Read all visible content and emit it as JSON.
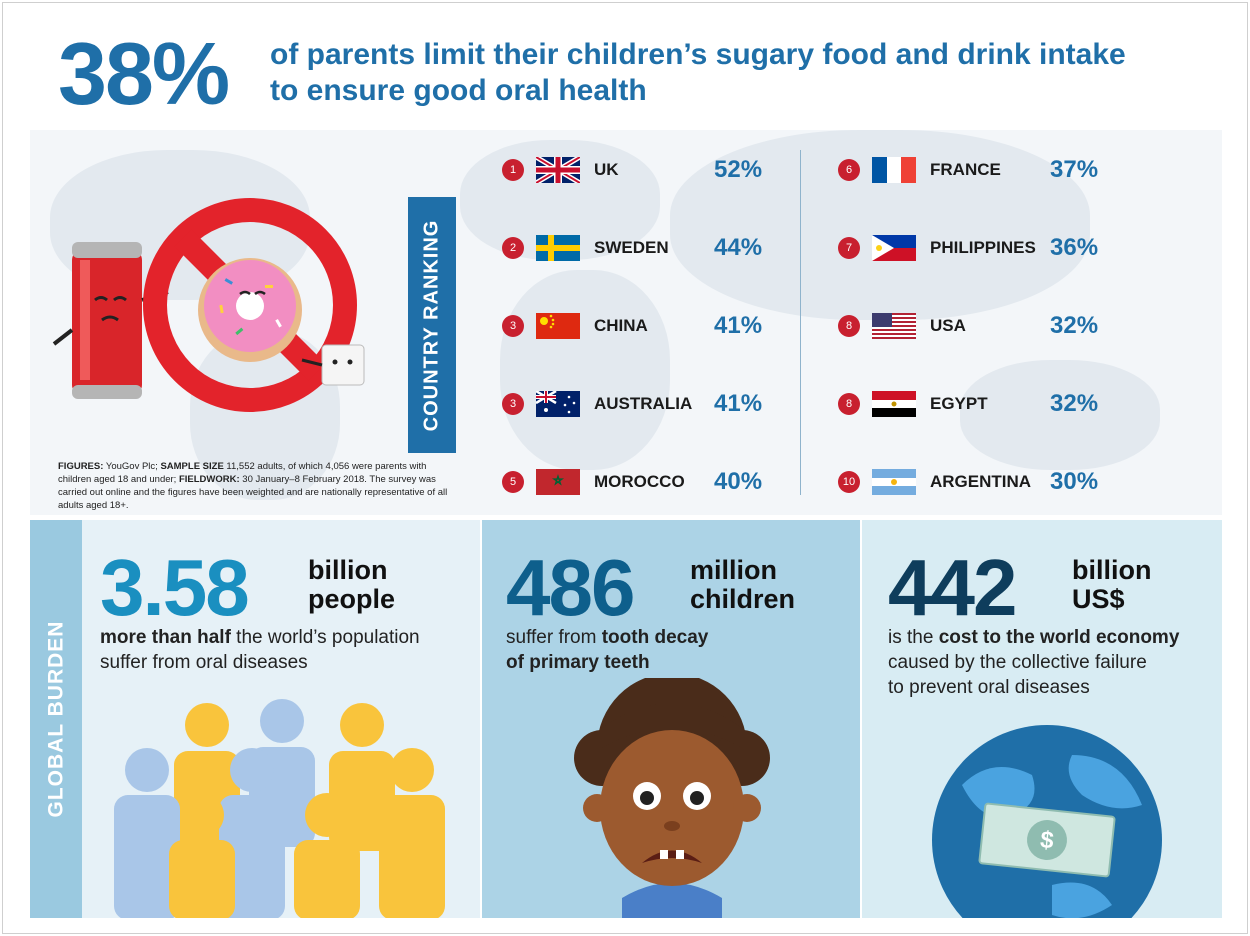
{
  "header": {
    "big_number": "38%",
    "line1": "of parents limit their children’s sugary food and drink intake",
    "line2": "to ensure good oral health"
  },
  "ranking": {
    "label": "COUNTRY RANKING",
    "left": [
      {
        "rank": "1",
        "country": "UK",
        "pct": "52%",
        "flag": "uk"
      },
      {
        "rank": "2",
        "country": "SWEDEN",
        "pct": "44%",
        "flag": "sweden"
      },
      {
        "rank": "3",
        "country": "CHINA",
        "pct": "41%",
        "flag": "china"
      },
      {
        "rank": "3",
        "country": "AUSTRALIA",
        "pct": "41%",
        "flag": "australia"
      },
      {
        "rank": "5",
        "country": "MOROCCO",
        "pct": "40%",
        "flag": "morocco"
      }
    ],
    "right": [
      {
        "rank": "6",
        "country": "FRANCE",
        "pct": "37%",
        "flag": "france"
      },
      {
        "rank": "7",
        "country": "PHILIPPINES",
        "pct": "36%",
        "flag": "philippines"
      },
      {
        "rank": "8",
        "country": "USA",
        "pct": "32%",
        "flag": "usa"
      },
      {
        "rank": "8",
        "country": "EGYPT",
        "pct": "32%",
        "flag": "egypt"
      },
      {
        "rank": "10",
        "country": "ARGENTINA",
        "pct": "30%",
        "flag": "argentina"
      }
    ]
  },
  "footnote": {
    "figures_label": "FIGURES:",
    "figures_text": " YouGov Plc; ",
    "sample_label": "SAMPLE SIZE",
    "sample_text": " 11,552 adults, of which 4,056 were parents with children aged 18 and under; ",
    "fieldwork_label": "FIELDWORK:",
    "fieldwork_text": " 30 January–8 February 2018. The survey was carried out online and the figures have been weighted and are nationally representative of all adults aged 18+."
  },
  "global_burden": {
    "label": "GLOBAL BURDEN",
    "stat1": {
      "number": "3.58",
      "unit1": "billion",
      "unit2": "people",
      "bold": "more than half",
      "rest1": " the world’s population",
      "line2": "suffer from oral diseases"
    },
    "stat2": {
      "number": "486",
      "unit1": "million",
      "unit2": "children",
      "pre": "suffer from ",
      "bold1": "tooth decay",
      "bold2": "of primary teeth"
    },
    "stat3": {
      "number": "442",
      "unit1": "billion",
      "unit2": "US$",
      "pre": "is the ",
      "bold": "cost to the world economy",
      "line2": "caused by the collective failure",
      "line3": "to prevent oral diseases"
    }
  },
  "colors": {
    "accent_blue": "#1f6fa8",
    "rank_red": "#c8202f",
    "teal_number": "#1a8fc0",
    "dark_number": "#0e3d5c"
  }
}
